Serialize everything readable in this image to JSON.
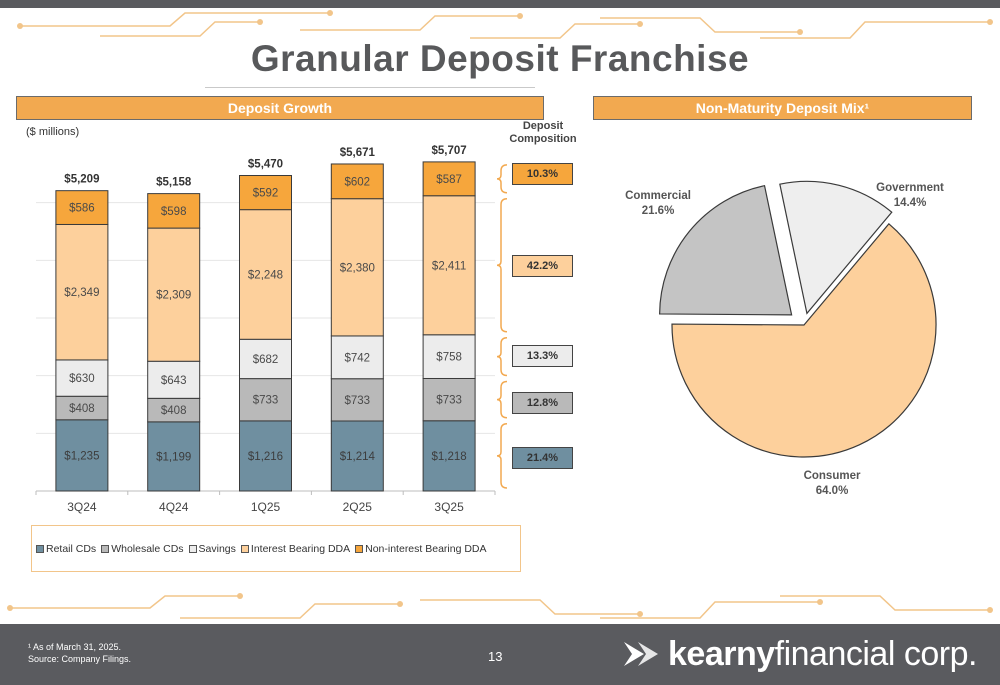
{
  "page": {
    "title": "Granular Deposit Franchise",
    "page_number": "13",
    "footnote_line1": "¹ As of March 31, 2025.",
    "footnote_line2": "Source: Company Filings.",
    "logo_bold": "kearny",
    "logo_light": "financial corp."
  },
  "left_panel": {
    "header": "Deposit Growth",
    "units": "($ millions)",
    "composition_title_line1": "Deposit",
    "composition_title_line2": "Composition"
  },
  "right_panel": {
    "header": "Non-Maturity Deposit Mix¹"
  },
  "colors": {
    "retail_cds": "#6f8fa0",
    "wholesale_cds": "#b9b9b9",
    "savings": "#ececec",
    "interest_bearing_dda": "#fdd09c",
    "non_interest_bearing_dda": "#f6a63c",
    "accent": "#f2a950",
    "dark_gray": "#5a5b5f"
  },
  "chart_data": [
    {
      "type": "bar",
      "stacked": true,
      "categories": [
        "3Q24",
        "4Q24",
        "1Q25",
        "2Q25",
        "3Q25"
      ],
      "series": [
        {
          "name": "Retail CDs",
          "values": [
            1235,
            1199,
            1216,
            1214,
            1218
          ],
          "labels": [
            "$1,235",
            "$1,199",
            "$1,216",
            "$1,214",
            "$1,218"
          ]
        },
        {
          "name": "Wholesale CDs",
          "values": [
            408,
            408,
            733,
            733,
            733
          ],
          "labels": [
            "$408",
            "$408",
            "$733",
            "$733",
            "$733"
          ]
        },
        {
          "name": "Savings",
          "values": [
            630,
            643,
            682,
            742,
            758
          ],
          "labels": [
            "$630",
            "$643",
            "$682",
            "$742",
            "$758"
          ]
        },
        {
          "name": "Interest Bearing DDA",
          "values": [
            2349,
            2309,
            2248,
            2380,
            2411
          ],
          "labels": [
            "$2,349",
            "$2,309",
            "$2,248",
            "$2,380",
            "$2,411"
          ]
        },
        {
          "name": "Non-interest Bearing DDA",
          "values": [
            586,
            598,
            592,
            602,
            587
          ],
          "labels": [
            "$586",
            "$598",
            "$592",
            "$602",
            "$587"
          ]
        }
      ],
      "totals": [
        "$5,209",
        "$5,158",
        "$5,470",
        "$5,671",
        "$5,707"
      ],
      "ylim": [
        0,
        6000
      ],
      "grid": true,
      "legend_position": "bottom",
      "composition": [
        {
          "series": "Non-interest Bearing DDA",
          "label": "10.3%"
        },
        {
          "series": "Interest Bearing DDA",
          "label": "42.2%"
        },
        {
          "series": "Savings",
          "label": "13.3%"
        },
        {
          "series": "Wholesale CDs",
          "label": "12.8%"
        },
        {
          "series": "Retail CDs",
          "label": "21.4%"
        }
      ]
    },
    {
      "type": "pie",
      "slices": [
        {
          "name": "Consumer",
          "value": 64.0,
          "label": "64.0%",
          "color": "#fdd09c"
        },
        {
          "name": "Commercial",
          "value": 21.6,
          "label": "21.6%",
          "color": "#c4c4c4"
        },
        {
          "name": "Government",
          "value": 14.4,
          "label": "14.4%",
          "color": "#eeeeee"
        }
      ],
      "exploded": true
    }
  ]
}
